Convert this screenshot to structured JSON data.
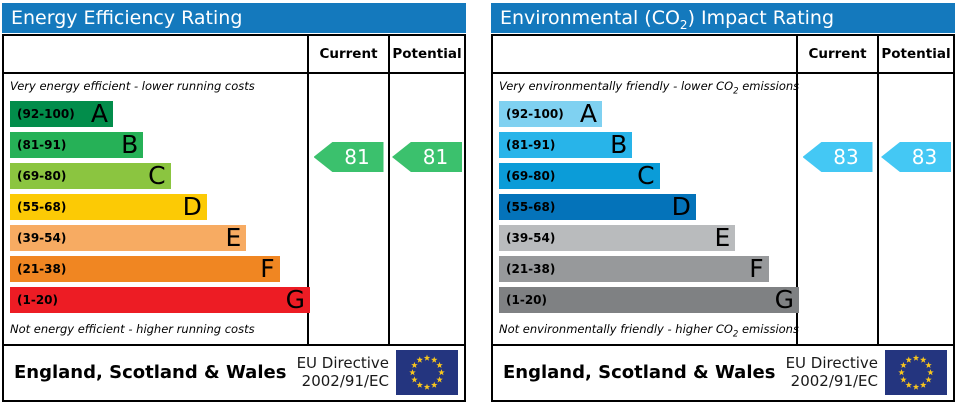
{
  "colors": {
    "header_bar": "#1479bd",
    "border": "#000000",
    "flag_background": "#24357f",
    "flag_stars": "#f7c51e"
  },
  "chart_data": [
    {
      "type": "bar",
      "title": "Energy Efficiency Rating",
      "subtitle_top": "Very energy efficient - lower running costs",
      "subtitle_bottom": "Not energy efficient - higher running costs",
      "categories": [
        "A (92-100)",
        "B (81-91)",
        "C (69-80)",
        "D (55-68)",
        "E (39-54)",
        "F (21-38)",
        "G (1-20)"
      ],
      "band_colors": [
        "#028d4b",
        "#26b157",
        "#8bc540",
        "#fcca05",
        "#f7ab62",
        "#f08622",
        "#ed1c24"
      ],
      "current": 81,
      "potential": 81,
      "value_range": [
        1,
        100
      ]
    },
    {
      "type": "bar",
      "title": "Environmental (CO2) Impact Rating",
      "subtitle_top": "Very environmentally friendly - lower CO2 emissions",
      "subtitle_bottom": "Not environmentally friendly - higher CO2 emissions",
      "categories": [
        "A (92-100)",
        "B (81-91)",
        "C (69-80)",
        "D (55-68)",
        "E (39-54)",
        "F (21-38)",
        "G (1-20)"
      ],
      "band_colors": [
        "#7fd1f1",
        "#28b4e9",
        "#0b9cd8",
        "#0473ba",
        "#b9bbbd",
        "#97999b",
        "#7f8183"
      ],
      "current": 83,
      "potential": 83,
      "value_range": [
        1,
        100
      ]
    }
  ],
  "panels": [
    {
      "title": {
        "pre": "Energy Efficiency Rating",
        "sub": "",
        "post": ""
      },
      "columns": {
        "current": "Current",
        "potential": "Potential"
      },
      "top_note": {
        "pre": "Very energy efficient - lower running costs",
        "sub": "",
        "post": ""
      },
      "bottom_note": {
        "pre": "Not energy efficient - higher running costs",
        "sub": "",
        "post": ""
      },
      "bands": [
        {
          "range": "(92-100)",
          "letter": "A",
          "color": "#028d4b",
          "width_pct": "34%"
        },
        {
          "range": "(81-91)",
          "letter": "B",
          "color": "#26b157",
          "width_pct": "44%"
        },
        {
          "range": "(69-80)",
          "letter": "C",
          "color": "#8bc540",
          "width_pct": "53%"
        },
        {
          "range": "(55-68)",
          "letter": "D",
          "color": "#fcca05",
          "width_pct": "65%"
        },
        {
          "range": "(39-54)",
          "letter": "E",
          "color": "#f7ab62",
          "width_pct": "78%"
        },
        {
          "range": "(21-38)",
          "letter": "F",
          "color": "#f08622",
          "width_pct": "89%"
        },
        {
          "range": "(1-20)",
          "letter": "G",
          "color": "#ed1c24",
          "width_pct": "99%"
        }
      ],
      "arrow_color": "#3bc16d",
      "current": {
        "value": "81"
      },
      "potential": {
        "value": "81"
      },
      "footer": {
        "region": "England, Scotland & Wales",
        "directive_line1": "EU Directive",
        "directive_line2": "2002/91/EC"
      }
    },
    {
      "title": {
        "pre": "Environmental (CO",
        "sub": "2",
        "post": ") Impact Rating"
      },
      "columns": {
        "current": "Current",
        "potential": "Potential"
      },
      "top_note": {
        "pre": "Very environmentally friendly - lower CO",
        "sub": "2",
        "post": " emissions"
      },
      "bottom_note": {
        "pre": "Not environmentally friendly - higher CO",
        "sub": "2",
        "post": " emissions"
      },
      "bands": [
        {
          "range": "(92-100)",
          "letter": "A",
          "color": "#7fd1f1",
          "width_pct": "34%"
        },
        {
          "range": "(81-91)",
          "letter": "B",
          "color": "#28b4e9",
          "width_pct": "44%"
        },
        {
          "range": "(69-80)",
          "letter": "C",
          "color": "#0b9cd8",
          "width_pct": "53%"
        },
        {
          "range": "(55-68)",
          "letter": "D",
          "color": "#0473ba",
          "width_pct": "65%"
        },
        {
          "range": "(39-54)",
          "letter": "E",
          "color": "#b9bbbd",
          "width_pct": "78%"
        },
        {
          "range": "(21-38)",
          "letter": "F",
          "color": "#97999b",
          "width_pct": "89%"
        },
        {
          "range": "(1-20)",
          "letter": "G",
          "color": "#7f8183",
          "width_pct": "99%"
        }
      ],
      "arrow_color": "#44c8f4",
      "current": {
        "value": "83"
      },
      "potential": {
        "value": "83"
      },
      "footer": {
        "region": "England, Scotland & Wales",
        "directive_line1": "EU Directive",
        "directive_line2": "2002/91/EC"
      }
    }
  ]
}
